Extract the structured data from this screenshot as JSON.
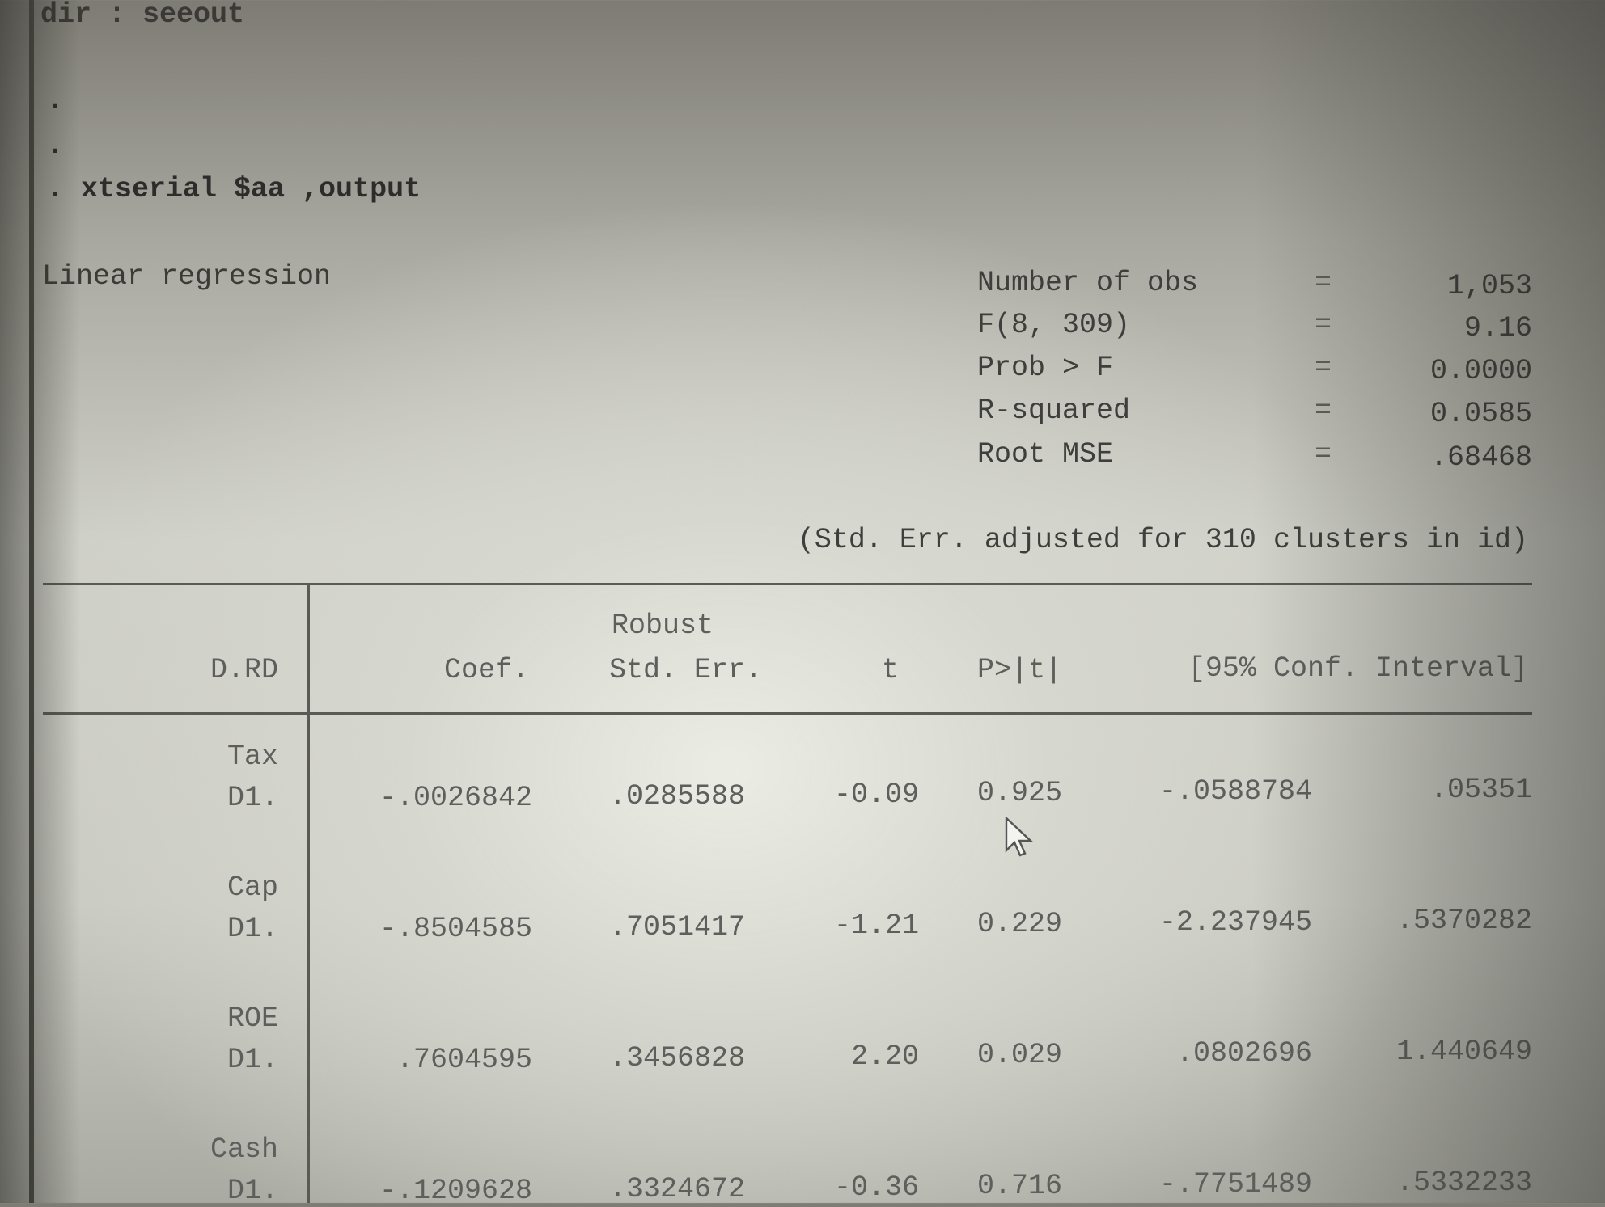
{
  "console": {
    "line_prev": "dir : seeout",
    "dot1": ".",
    "dot2": ".",
    "command": ". xtserial $aa ,output"
  },
  "regression": {
    "title": "Linear regression",
    "stats": [
      {
        "label": "Number of obs",
        "eq": "=",
        "value": "1,053"
      },
      {
        "label": "F(8, 309)",
        "eq": "=",
        "value": "9.16"
      },
      {
        "label": "Prob > F",
        "eq": "=",
        "value": "0.0000"
      },
      {
        "label": "R-squared",
        "eq": "=",
        "value": "0.0585"
      },
      {
        "label": "Root MSE",
        "eq": "=",
        "value": ".68468"
      }
    ],
    "note": "(Std. Err. adjusted for 310 clusters in id)",
    "header": {
      "depvar": "D.RD",
      "coef": "Coef.",
      "robust": "Robust",
      "se": "Std. Err.",
      "t": "t",
      "p": "P>|t|",
      "ci": "[95% Conf. Interval]"
    },
    "rows": [
      {
        "var": "Tax",
        "op": "D1.",
        "coef": "-.0026842",
        "se": ".0285588",
        "t": "-0.09",
        "p": "0.925",
        "lo": "-.0588784",
        "hi": ".05351"
      },
      {
        "var": "Cap",
        "op": "D1.",
        "coef": "-.8504585",
        "se": ".7051417",
        "t": "-1.21",
        "p": "0.229",
        "lo": "-2.237945",
        "hi": ".5370282"
      },
      {
        "var": "ROE",
        "op": "D1.",
        "coef": ".7604595",
        "se": ".3456828",
        "t": "2.20",
        "p": "0.029",
        "lo": ".0802696",
        "hi": "1.440649"
      },
      {
        "var": "Cash",
        "op": "D1.",
        "coef": "-.1209628",
        "se": ".3324672",
        "t": "-0.36",
        "p": "0.716",
        "lo": "-.7751489",
        "hi": ".5332233"
      }
    ]
  },
  "icons": {
    "cursor": "mouse-pointer-icon"
  }
}
